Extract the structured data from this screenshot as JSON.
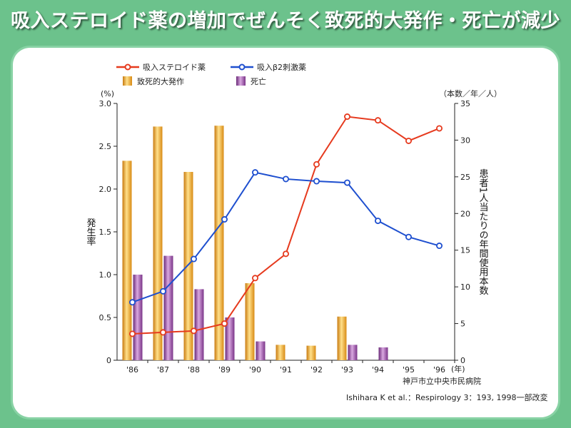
{
  "title": "吸入ステロイド薬の増加でぜんそく致死的大発作・死亡が減少",
  "chart_data": {
    "type": "bar+line",
    "categories": [
      "'86",
      "'87",
      "'88",
      "'89",
      "'90",
      "'91",
      "'92",
      "'93",
      "'94",
      "'95",
      "'96"
    ],
    "x_unit": "(年)",
    "left_axis": {
      "label": "発生率",
      "unit": "(%)",
      "ylim": [
        0,
        3.0
      ],
      "ticks": [
        "0",
        "0.5",
        "1.0",
        "1.5",
        "2.0",
        "2.5",
        "3.0"
      ]
    },
    "right_axis": {
      "label": "患者1人当たりの年間使用本数",
      "unit": "（本数／年／人）",
      "ylim": [
        0,
        35
      ],
      "ticks": [
        "0",
        "5",
        "10",
        "15",
        "20",
        "25",
        "30",
        "35"
      ]
    },
    "bar_series": [
      {
        "name": "致死的大発作",
        "color": "#f0a020",
        "axis": "left",
        "values": [
          2.33,
          2.73,
          2.2,
          2.74,
          0.9,
          0.18,
          0.17,
          0.51,
          0,
          0,
          0
        ]
      },
      {
        "name": "死亡",
        "color": "#9b3fa0",
        "axis": "left",
        "values": [
          1.0,
          1.22,
          0.83,
          0.5,
          0.22,
          0,
          0,
          0.18,
          0.15,
          0,
          0
        ]
      }
    ],
    "line_series": [
      {
        "name": "吸入ステロイド薬",
        "color": "#e63a1e",
        "axis": "right",
        "values": [
          3.6,
          3.8,
          4.0,
          5.0,
          11.2,
          14.5,
          26.7,
          33.2,
          32.7,
          29.9,
          31.6
        ]
      },
      {
        "name": "吸入β2刺激薬",
        "color": "#1e4fcf",
        "axis": "right",
        "values": [
          7.9,
          9.4,
          13.8,
          19.2,
          25.6,
          24.7,
          24.4,
          24.2,
          19.0,
          16.8,
          15.6
        ]
      }
    ],
    "source": "神戸市立中央市民病院",
    "citation": "Ishihara K et al.：Respirology 3：193, 1998一部改変",
    "grid": false,
    "legend_position": "top-left"
  }
}
